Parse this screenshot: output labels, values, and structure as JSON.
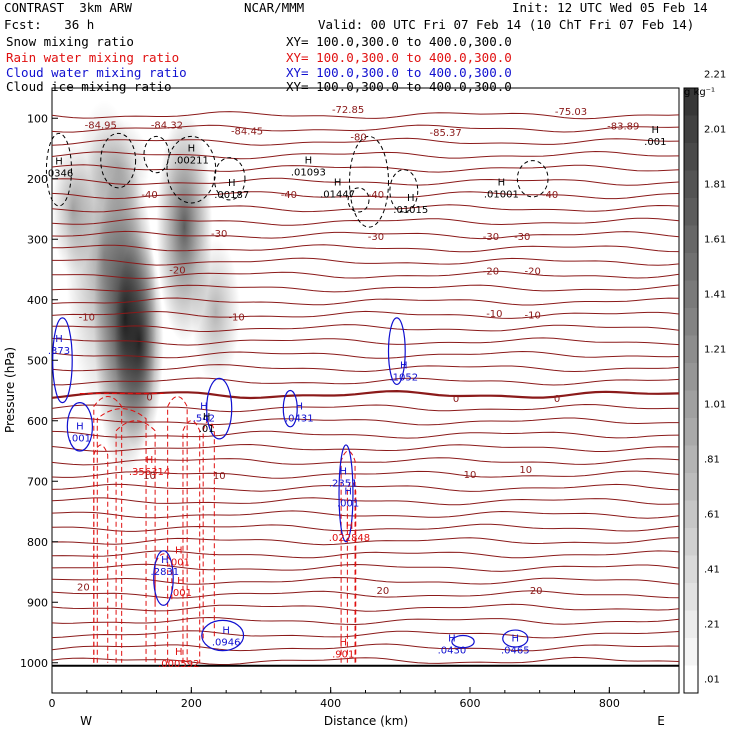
{
  "header": {
    "left1": "CONTRAST  3km ARW",
    "center1": "NCAR/MMM",
    "right1": "Init: 12 UTC Wed 05 Feb 14",
    "left2": "Fcst:   36 h",
    "right2": "Valid: 00 UTC Fri 07 Feb 14 (10 ChT Fri 07 Feb 14)"
  },
  "fields": [
    {
      "name": "Snow mixing ratio",
      "xy": "XY= 100.0,300.0 to 400.0,300.0",
      "color": "#000000"
    },
    {
      "name": "Rain water mixing ratio",
      "xy": "XY= 100.0,300.0 to 400.0,300.0",
      "color": "#e01010"
    },
    {
      "name": "Cloud water mixing ratio",
      "xy": "XY= 100.0,300.0 to 400.0,300.0",
      "color": "#1010d0"
    },
    {
      "name": "Cloud ice mixing ratio",
      "xy": "XY= 100.0,300.0 to 400.0,300.0",
      "color": "#000000"
    }
  ],
  "chart_data": {
    "type": "cross-section",
    "xlabel": "Distance (km)",
    "ylabel": "Pressure (hPa)",
    "xlim": [
      0,
      900
    ],
    "ylim": [
      1050,
      50
    ],
    "x_ticks": [
      "0",
      "200",
      "400",
      "600",
      "800"
    ],
    "x_tick_values": [
      0,
      200,
      400,
      600,
      800
    ],
    "y_ticks": [
      "100",
      "200",
      "300",
      "400",
      "500",
      "600",
      "700",
      "800",
      "900",
      "1000"
    ],
    "y_tick_values": [
      100,
      200,
      300,
      400,
      500,
      600,
      700,
      800,
      900,
      1000
    ],
    "west_label": "W",
    "east_label": "E",
    "colorbar": {
      "unit": "g kg⁻¹",
      "labels": [
        ".01",
        ".21",
        ".41",
        ".61",
        ".81",
        "1.01",
        "1.21",
        "1.41",
        "1.61",
        "1.81",
        "2.01",
        "2.21"
      ],
      "values": [
        0.01,
        0.21,
        0.41,
        0.61,
        0.81,
        1.01,
        1.21,
        1.41,
        1.61,
        1.81,
        2.01,
        2.21
      ],
      "levels": 22
    },
    "temperature_contours": {
      "color": "#8b1a1a",
      "labels": [
        {
          "text": "-84.95",
          "x": 70,
          "p": 110
        },
        {
          "text": "-84.32",
          "x": 165,
          "p": 110
        },
        {
          "text": "-84.45",
          "x": 280,
          "p": 120
        },
        {
          "text": "-72.85",
          "x": 425,
          "p": 85
        },
        {
          "text": "-80",
          "x": 440,
          "p": 130
        },
        {
          "text": "-85.37",
          "x": 565,
          "p": 123
        },
        {
          "text": "-75.03",
          "x": 745,
          "p": 88
        },
        {
          "text": "-83.89",
          "x": 820,
          "p": 112
        },
        {
          "text": "-40",
          "x": 140,
          "p": 225
        },
        {
          "text": "-40",
          "x": 340,
          "p": 225
        },
        {
          "text": "-40",
          "x": 465,
          "p": 225
        },
        {
          "text": "-40",
          "x": 715,
          "p": 225
        },
        {
          "text": "-30",
          "x": 240,
          "p": 290
        },
        {
          "text": "-30",
          "x": 465,
          "p": 295
        },
        {
          "text": "-30",
          "x": 630,
          "p": 295
        },
        {
          "text": "-30",
          "x": 675,
          "p": 295
        },
        {
          "text": "-20",
          "x": 180,
          "p": 350
        },
        {
          "text": "-20",
          "x": 630,
          "p": 352
        },
        {
          "text": "-20",
          "x": 690,
          "p": 352
        },
        {
          "text": "-10",
          "x": 50,
          "p": 428
        },
        {
          "text": "-10",
          "x": 265,
          "p": 428
        },
        {
          "text": "-10",
          "x": 635,
          "p": 422
        },
        {
          "text": "-10",
          "x": 690,
          "p": 424
        },
        {
          "text": "0",
          "x": 140,
          "p": 560
        },
        {
          "text": "0",
          "x": 580,
          "p": 562
        },
        {
          "text": "0",
          "x": 725,
          "p": 562
        },
        {
          "text": "10",
          "x": 140,
          "p": 690
        },
        {
          "text": "10",
          "x": 240,
          "p": 690
        },
        {
          "text": "10",
          "x": 600,
          "p": 688
        },
        {
          "text": "10",
          "x": 680,
          "p": 680
        },
        {
          "text": "20",
          "x": 45,
          "p": 874
        },
        {
          "text": "20",
          "x": 475,
          "p": 880
        },
        {
          "text": "20",
          "x": 695,
          "p": 880
        }
      ]
    },
    "maxima": [
      {
        "series": "cloud_ice",
        "text": ".0346",
        "x": 10,
        "p": 190
      },
      {
        "series": "cloud_ice",
        "text": ".00211",
        "x": 200,
        "p": 168
      },
      {
        "series": "cloud_ice",
        "text": ".00187",
        "x": 258,
        "p": 225
      },
      {
        "series": "cloud_ice",
        "text": ".01093",
        "x": 368,
        "p": 188
      },
      {
        "series": "cloud_ice",
        "text": ".01447",
        "x": 410,
        "p": 224
      },
      {
        "series": "cloud_ice",
        "text": ".01015",
        "x": 515,
        "p": 250
      },
      {
        "series": "cloud_ice",
        "text": ".01001",
        "x": 645,
        "p": 224
      },
      {
        "series": "cloud_ice",
        "text": ".001",
        "x": 866,
        "p": 138
      },
      {
        "series": "cloud_water",
        "text": ".373",
        "x": 10,
        "p": 483
      },
      {
        "series": "cloud_water",
        "text": ".001",
        "x": 40,
        "p": 628
      },
      {
        "series": "cloud_water",
        "text": ".542",
        "x": 218,
        "p": 595
      },
      {
        "series": "cloud_water",
        "text": ".0431",
        "x": 355,
        "p": 595
      },
      {
        "series": "cloud_water",
        "text": ".1052",
        "x": 505,
        "p": 527
      },
      {
        "series": "cloud_water",
        "text": ".2351",
        "x": 418,
        "p": 702
      },
      {
        "series": "cloud_water",
        "text": ".001",
        "x": 425,
        "p": 735
      },
      {
        "series": "cloud_water",
        "text": ".2831",
        "x": 162,
        "p": 848
      },
      {
        "series": "cloud_water",
        "text": ".0946",
        "x": 250,
        "p": 965
      },
      {
        "series": "cloud_water",
        "text": ".0430",
        "x": 574,
        "p": 978
      },
      {
        "series": "cloud_water",
        "text": ".0465",
        "x": 665,
        "p": 978
      },
      {
        "series": "rain",
        "text": ".356314",
        "x": 140,
        "p": 683
      },
      {
        "series": "rain",
        "text": ".001",
        "x": 182,
        "p": 833
      },
      {
        "series": "rain",
        "text": ".001",
        "x": 185,
        "p": 883
      },
      {
        "series": "rain",
        "text": ".022848",
        "x": 427,
        "p": 792
      },
      {
        "series": "rain",
        "text": ".000592",
        "x": 182,
        "p": 1000
      },
      {
        "series": "rain",
        "text": ".901",
        "x": 418,
        "p": 985
      },
      {
        "series": "snow_lab",
        "text": ".01",
        "x": 222,
        "p": 612
      }
    ],
    "series_colors": {
      "snow": "#000000",
      "rain": "#e01010",
      "cloud_water": "#1010d0",
      "cloud_ice": "#000000",
      "temperature": "#8b1a1a"
    }
  }
}
